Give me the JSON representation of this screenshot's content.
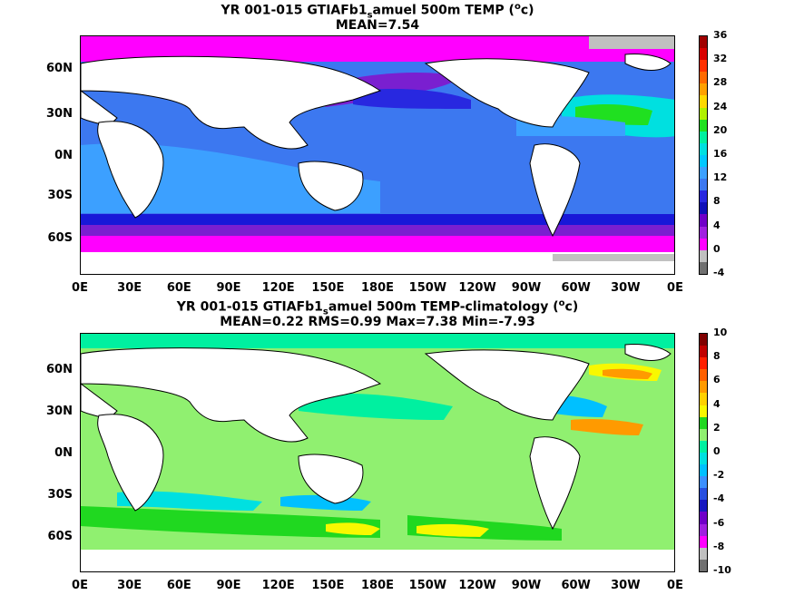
{
  "map1": {
    "title_prefix": "YR 001-015 GTIAFb1",
    "title_sub": "s",
    "title_mid": "amuel 500m TEMP (",
    "title_sup": "o",
    "title_end": "c)",
    "stats": "MEAN=7.54",
    "lat_labels": [
      "60N",
      "30N",
      "0N",
      "30S",
      "60S"
    ],
    "lon_labels": [
      "0E",
      "30E",
      "60E",
      "90E",
      "120E",
      "150E",
      "180E",
      "150W",
      "120W",
      "90W",
      "60W",
      "30W",
      "0E"
    ],
    "colorbar_labels": [
      "36",
      "32",
      "28",
      "24",
      "20",
      "16",
      "12",
      "8",
      "4",
      "0",
      "-4"
    ],
    "colorbar_colors": [
      "#a00000",
      "#d80000",
      "#ff3000",
      "#ff6a00",
      "#ffa000",
      "#ffd800",
      "#b0f000",
      "#20e020",
      "#00f0a0",
      "#00e0e0",
      "#00c8ff",
      "#3ca0ff",
      "#3c78f0",
      "#2828e0",
      "#1010b8",
      "#7000c8",
      "#a020e0",
      "#ff00ff",
      "#c0c0c0",
      "#707070"
    ]
  },
  "map2": {
    "title_prefix": "YR 001-015 GTIAFb1",
    "title_sub": "s",
    "title_mid": "amuel 500m TEMP-climatology (",
    "title_sup": "o",
    "title_end": "c)",
    "stats": "MEAN=0.22   RMS=0.99   Max=7.38   Min=-7.93",
    "lat_labels": [
      "60N",
      "30N",
      "0N",
      "30S",
      "60S"
    ],
    "lon_labels": [
      "0E",
      "30E",
      "60E",
      "90E",
      "120E",
      "150E",
      "180E",
      "150W",
      "120W",
      "90W",
      "60W",
      "30W",
      "0E"
    ],
    "colorbar_labels": [
      "10",
      "8",
      "6",
      "4",
      "2",
      "0",
      "-2",
      "-4",
      "-6",
      "-8",
      "-10"
    ],
    "colorbar_colors": [
      "#800000",
      "#c00000",
      "#ff2000",
      "#ff6000",
      "#ff9a00",
      "#ffd000",
      "#f8f800",
      "#20d820",
      "#90f070",
      "#00f0a0",
      "#00e0e0",
      "#00c0ff",
      "#3c90ff",
      "#2850e0",
      "#1818c0",
      "#7000c8",
      "#a020e0",
      "#ff00ff",
      "#c0c0c0",
      "#707070"
    ]
  }
}
